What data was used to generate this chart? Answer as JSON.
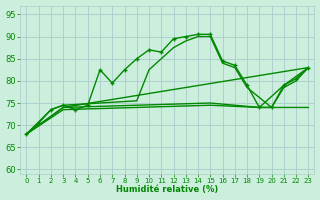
{
  "bg_color": "#cceedd",
  "grid_color": "#aacccc",
  "line_color": "#008800",
  "xlabel": "Humidité relative (%)",
  "ylabel_ticks": [
    60,
    65,
    70,
    75,
    80,
    85,
    90,
    95
  ],
  "xlim": [
    -0.5,
    23.5
  ],
  "ylim": [
    59,
    97
  ],
  "xticks": [
    0,
    1,
    2,
    3,
    4,
    5,
    6,
    7,
    8,
    9,
    10,
    11,
    12,
    13,
    14,
    15,
    16,
    17,
    18,
    19,
    20,
    21,
    22,
    23
  ],
  "series": [
    {
      "x": [
        0,
        1,
        2,
        3,
        4,
        5,
        6,
        7,
        8,
        9,
        10,
        11,
        12,
        13,
        14,
        15,
        16,
        17,
        18,
        19,
        20,
        21,
        22,
        23
      ],
      "y": [
        68,
        70.5,
        73.5,
        74.5,
        73.5,
        74.5,
        82.5,
        79.5,
        82.5,
        85,
        87,
        86.5,
        89.5,
        90,
        90.5,
        90.5,
        84.5,
        83.5,
        79,
        74,
        74,
        79,
        80.5,
        83
      ],
      "has_markers": true
    },
    {
      "x": [
        0,
        2,
        3,
        6,
        9,
        10,
        11,
        12,
        13,
        14,
        15,
        16,
        17,
        18,
        20,
        21,
        22,
        23
      ],
      "y": [
        68,
        73.5,
        74.5,
        75,
        75.5,
        82.5,
        85,
        87.5,
        89,
        90,
        90,
        84,
        83,
        78.5,
        74,
        78.5,
        80,
        83
      ],
      "has_markers": false
    },
    {
      "x": [
        0,
        3,
        23
      ],
      "y": [
        68,
        74,
        83
      ],
      "has_markers": false
    },
    {
      "x": [
        0,
        3,
        9,
        15,
        19,
        21,
        23
      ],
      "y": [
        68,
        74,
        74.5,
        75,
        74,
        79,
        83
      ],
      "has_markers": false
    },
    {
      "x": [
        0,
        3,
        9,
        15,
        19,
        21,
        23
      ],
      "y": [
        68,
        73.5,
        74,
        74.5,
        74,
        74,
        74
      ],
      "has_markers": false
    }
  ],
  "tick_fontsize": 5,
  "xlabel_fontsize": 6,
  "tick_color": "#008800",
  "spine_color": "#aacccc"
}
